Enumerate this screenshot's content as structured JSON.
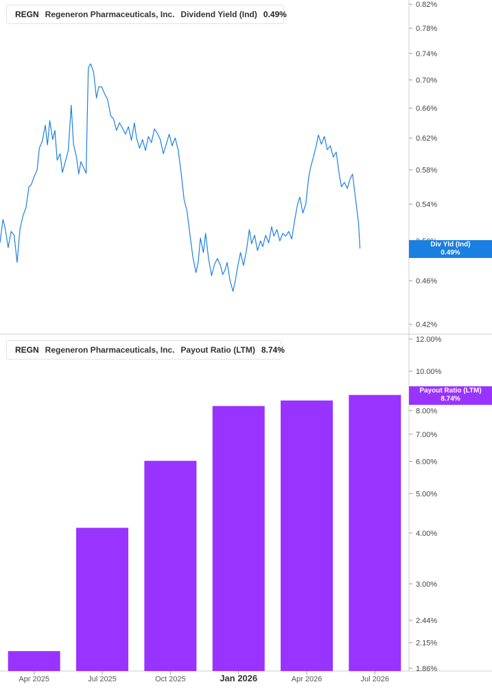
{
  "chart_data": [
    {
      "type": "line",
      "legend": {
        "ticker": "REGN",
        "company": "Regeneron Pharmaceuticals, Inc.",
        "metric": "Dividend Yield (Ind)",
        "value": "0.49%",
        "color": "#1a7fe0"
      },
      "current_flag": {
        "label": "Div Yld (Ind)",
        "value": "0.49%",
        "color": "#1a7fe0"
      },
      "y_scale": "log",
      "ylim": [
        0.415,
        0.825
      ],
      "ytick_labels": [
        "0.82%",
        "0.78%",
        "0.74%",
        "0.70%",
        "0.66%",
        "0.62%",
        "0.58%",
        "0.54%",
        "0.50%",
        "0.46%",
        "0.42%"
      ],
      "ytick_values": [
        0.82,
        0.78,
        0.74,
        0.7,
        0.66,
        0.62,
        0.58,
        0.54,
        0.5,
        0.46,
        0.42
      ],
      "x_range": [
        "2025-02-01",
        "2026-08-06"
      ],
      "series": [
        {
          "points": [
            [
              "2025-02-01",
              0.498
            ],
            [
              "2025-02-05",
              0.523
            ],
            [
              "2025-02-08",
              0.513
            ],
            [
              "2025-02-12",
              0.493
            ],
            [
              "2025-02-16",
              0.51
            ],
            [
              "2025-02-20",
              0.506
            ],
            [
              "2025-02-24",
              0.478
            ],
            [
              "2025-02-28",
              0.513
            ],
            [
              "2025-03-04",
              0.527
            ],
            [
              "2025-03-08",
              0.536
            ],
            [
              "2025-03-12",
              0.56
            ],
            [
              "2025-03-15",
              0.562
            ],
            [
              "2025-03-19",
              0.572
            ],
            [
              "2025-03-23",
              0.58
            ],
            [
              "2025-03-26",
              0.607
            ],
            [
              "2025-03-30",
              0.616
            ],
            [
              "2025-04-03",
              0.637
            ],
            [
              "2025-04-06",
              0.611
            ],
            [
              "2025-04-09",
              0.643
            ],
            [
              "2025-04-13",
              0.618
            ],
            [
              "2025-04-16",
              0.63
            ],
            [
              "2025-04-19",
              0.592
            ],
            [
              "2025-04-23",
              0.6
            ],
            [
              "2025-04-26",
              0.577
            ],
            [
              "2025-04-30",
              0.59
            ],
            [
              "2025-05-04",
              0.604
            ],
            [
              "2025-05-08",
              0.664
            ],
            [
              "2025-05-11",
              0.612
            ],
            [
              "2025-05-15",
              0.596
            ],
            [
              "2025-05-18",
              0.575
            ],
            [
              "2025-05-21",
              0.59
            ],
            [
              "2025-05-25",
              0.582
            ],
            [
              "2025-05-28",
              0.576
            ],
            [
              "2025-05-31",
              0.718
            ],
            [
              "2025-06-03",
              0.724
            ],
            [
              "2025-06-07",
              0.712
            ],
            [
              "2025-06-11",
              0.674
            ],
            [
              "2025-06-14",
              0.69
            ],
            [
              "2025-06-18",
              0.69
            ],
            [
              "2025-06-22",
              0.68
            ],
            [
              "2025-06-26",
              0.672
            ],
            [
              "2025-06-30",
              0.65
            ],
            [
              "2025-07-04",
              0.645
            ],
            [
              "2025-07-08",
              0.63
            ],
            [
              "2025-07-12",
              0.64
            ],
            [
              "2025-07-16",
              0.633
            ],
            [
              "2025-07-20",
              0.625
            ],
            [
              "2025-07-24",
              0.635
            ],
            [
              "2025-07-28",
              0.617
            ],
            [
              "2025-08-01",
              0.64
            ],
            [
              "2025-08-04",
              0.62
            ],
            [
              "2025-08-08",
              0.607
            ],
            [
              "2025-08-12",
              0.618
            ],
            [
              "2025-08-16",
              0.604
            ],
            [
              "2025-08-20",
              0.622
            ],
            [
              "2025-08-24",
              0.614
            ],
            [
              "2025-08-28",
              0.632
            ],
            [
              "2025-09-01",
              0.626
            ],
            [
              "2025-09-05",
              0.618
            ],
            [
              "2025-09-09",
              0.6
            ],
            [
              "2025-09-13",
              0.612
            ],
            [
              "2025-09-17",
              0.625
            ],
            [
              "2025-09-21",
              0.61
            ],
            [
              "2025-09-25",
              0.62
            ],
            [
              "2025-09-29",
              0.605
            ],
            [
              "2025-10-03",
              0.577
            ],
            [
              "2025-10-07",
              0.545
            ],
            [
              "2025-10-11",
              0.532
            ],
            [
              "2025-10-15",
              0.506
            ],
            [
              "2025-10-19",
              0.483
            ],
            [
              "2025-10-23",
              0.468
            ],
            [
              "2025-10-26",
              0.478
            ],
            [
              "2025-10-29",
              0.503
            ],
            [
              "2025-11-02",
              0.488
            ],
            [
              "2025-11-05",
              0.508
            ],
            [
              "2025-11-09",
              0.482
            ],
            [
              "2025-11-13",
              0.465
            ],
            [
              "2025-11-17",
              0.476
            ],
            [
              "2025-11-21",
              0.482
            ],
            [
              "2025-11-25",
              0.475
            ],
            [
              "2025-11-28",
              0.466
            ],
            [
              "2025-12-01",
              0.47
            ],
            [
              "2025-12-04",
              0.478
            ],
            [
              "2025-12-08",
              0.46
            ],
            [
              "2025-12-12",
              0.45
            ],
            [
              "2025-12-15",
              0.46
            ],
            [
              "2025-12-18",
              0.473
            ],
            [
              "2025-12-22",
              0.488
            ],
            [
              "2025-12-26",
              0.475
            ],
            [
              "2025-12-30",
              0.49
            ],
            [
              "2026-01-03",
              0.512
            ],
            [
              "2026-01-06",
              0.497
            ],
            [
              "2026-01-10",
              0.506
            ],
            [
              "2026-01-14",
              0.49
            ],
            [
              "2026-01-18",
              0.5
            ],
            [
              "2026-01-21",
              0.494
            ],
            [
              "2026-01-25",
              0.506
            ],
            [
              "2026-01-29",
              0.498
            ],
            [
              "2026-02-02",
              0.515
            ],
            [
              "2026-02-05",
              0.505
            ],
            [
              "2026-02-09",
              0.512
            ],
            [
              "2026-02-13",
              0.5
            ],
            [
              "2026-02-17",
              0.508
            ],
            [
              "2026-02-21",
              0.505
            ],
            [
              "2026-02-25",
              0.51
            ],
            [
              "2026-03-01",
              0.502
            ],
            [
              "2026-03-05",
              0.522
            ],
            [
              "2026-03-09",
              0.54
            ],
            [
              "2026-03-12",
              0.548
            ],
            [
              "2026-03-16",
              0.53
            ],
            [
              "2026-03-20",
              0.54
            ],
            [
              "2026-03-24",
              0.572
            ],
            [
              "2026-03-27",
              0.585
            ],
            [
              "2026-03-30",
              0.595
            ],
            [
              "2026-04-03",
              0.61
            ],
            [
              "2026-04-06",
              0.624
            ],
            [
              "2026-04-10",
              0.612
            ],
            [
              "2026-04-14",
              0.622
            ],
            [
              "2026-04-18",
              0.605
            ],
            [
              "2026-04-22",
              0.61
            ],
            [
              "2026-04-26",
              0.596
            ],
            [
              "2026-04-30",
              0.602
            ],
            [
              "2026-05-04",
              0.575
            ],
            [
              "2026-05-07",
              0.56
            ],
            [
              "2026-05-11",
              0.565
            ],
            [
              "2026-05-15",
              0.558
            ],
            [
              "2026-05-19",
              0.57
            ],
            [
              "2026-05-22",
              0.575
            ],
            [
              "2026-05-26",
              0.546
            ],
            [
              "2026-05-30",
              0.52
            ],
            [
              "2026-06-01",
              0.492
            ]
          ]
        }
      ]
    },
    {
      "type": "bar",
      "legend": {
        "ticker": "REGN",
        "company": "Regeneron Pharmaceuticals, Inc.",
        "metric": "Payout Ratio (LTM)",
        "value": "8.74%",
        "color": "#9933ff"
      },
      "current_flag": {
        "label": "Payout Ratio (LTM)",
        "value": "8.74%",
        "color": "#9933ff"
      },
      "y_scale": "log",
      "ylim": [
        1.86,
        12.0
      ],
      "ytick_labels": [
        "12.00%",
        "10.00%",
        "9.00%",
        "8.00%",
        "7.00%",
        "6.00%",
        "5.00%",
        "4.00%",
        "3.00%",
        "2.44%",
        "2.15%",
        "1.86%"
      ],
      "ytick_values": [
        12.0,
        10.0,
        9.0,
        8.0,
        7.0,
        6.0,
        5.0,
        4.0,
        3.0,
        2.44,
        2.15,
        1.86
      ],
      "categories": [
        "Apr 2025",
        "Jul 2025",
        "Oct 2025",
        "Jan 2026",
        "Apr 2026",
        "Jul 2026"
      ],
      "bold_categories": [
        "Jan 2026"
      ],
      "values": [
        2.05,
        4.12,
        6.02,
        8.21,
        8.47,
        8.74
      ]
    }
  ]
}
